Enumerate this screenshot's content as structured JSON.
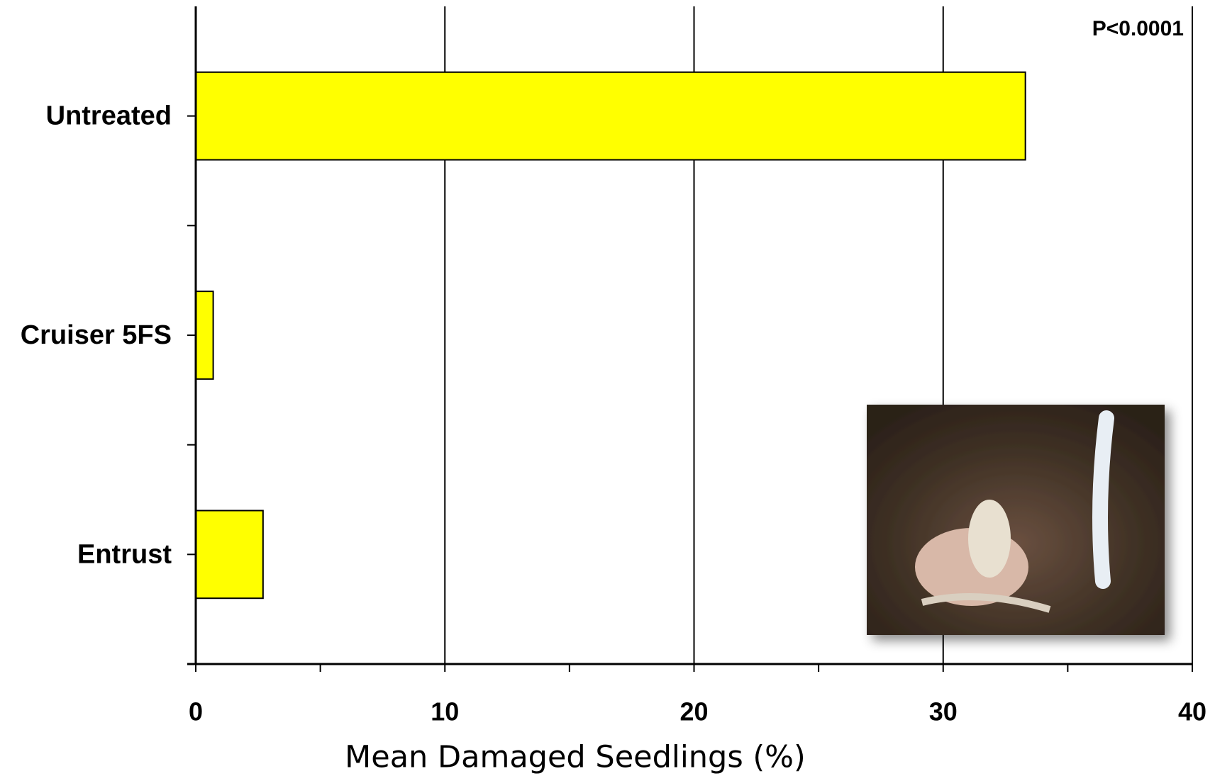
{
  "chart_data": {
    "type": "bar",
    "orientation": "horizontal",
    "categories": [
      "Untreated",
      "Cruiser 5FS",
      "Entrust"
    ],
    "values": [
      33.3,
      0.7,
      2.7
    ],
    "color": "#ffff00",
    "xlabel": "Mean Damaged Seedlings (%)",
    "xlim": [
      0,
      40
    ],
    "xticks": [
      0,
      10,
      20,
      30,
      40
    ],
    "xminorticks": [
      5,
      15,
      25,
      35
    ],
    "grid": true,
    "annotation": "P<0.0001"
  }
}
